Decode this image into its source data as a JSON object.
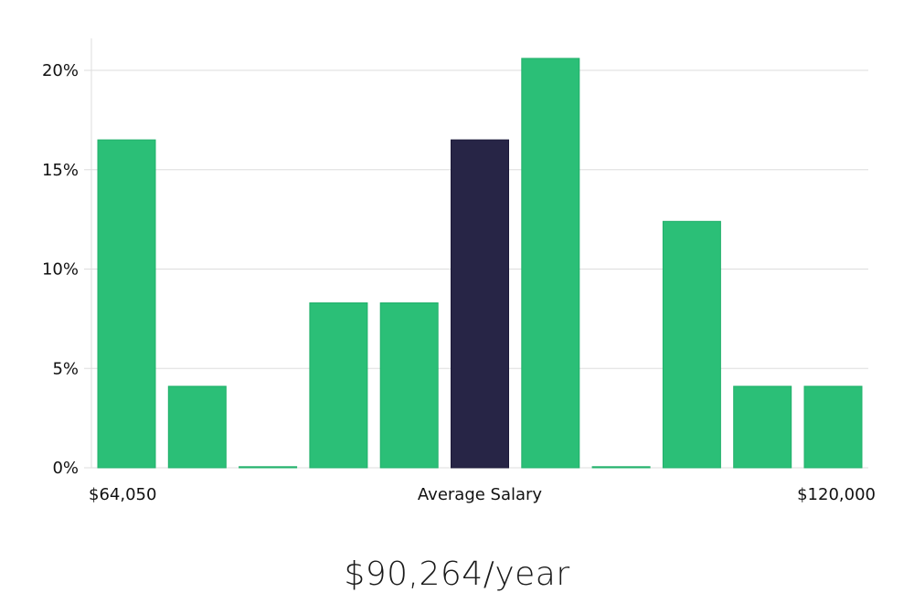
{
  "chart_data": {
    "type": "bar",
    "y_unit": "%",
    "values": [
      16.5,
      4.1,
      0,
      8.3,
      8.3,
      16.5,
      20.6,
      0,
      12.4,
      4.1,
      4.1
    ],
    "highlight_index": 5,
    "ylim": [
      0,
      21.6
    ],
    "yticks": [
      0,
      5,
      10,
      15,
      20
    ],
    "ytick_labels": [
      "0%",
      "5%",
      "10%",
      "15%",
      "20%"
    ],
    "x_labels": {
      "min": "$64,050",
      "center": "Average Salary",
      "max": "$120,000"
    },
    "grid": true,
    "colors": {
      "bar": "#2bbf77",
      "highlight": "#272546",
      "grid": "#dddddd",
      "axis": "#dddddd"
    }
  },
  "summary": {
    "salary": "$90,264/year"
  }
}
